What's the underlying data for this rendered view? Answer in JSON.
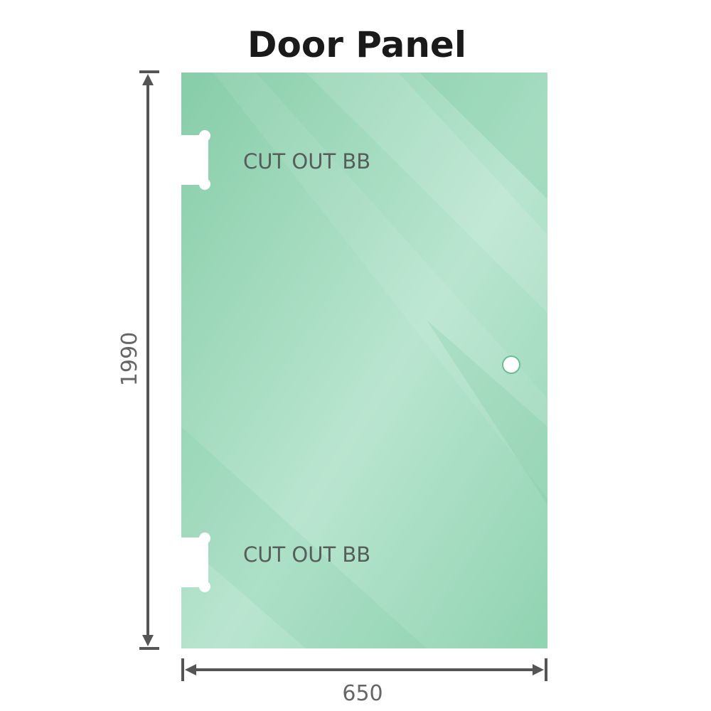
{
  "title": "Door Panel",
  "panel": {
    "glass_color": "#8fd2b0",
    "cutouts": [
      {
        "label": "CUT OUT BB"
      },
      {
        "label": "CUT OUT BB"
      }
    ]
  },
  "dimensions": {
    "height": "1990",
    "width": "650"
  }
}
